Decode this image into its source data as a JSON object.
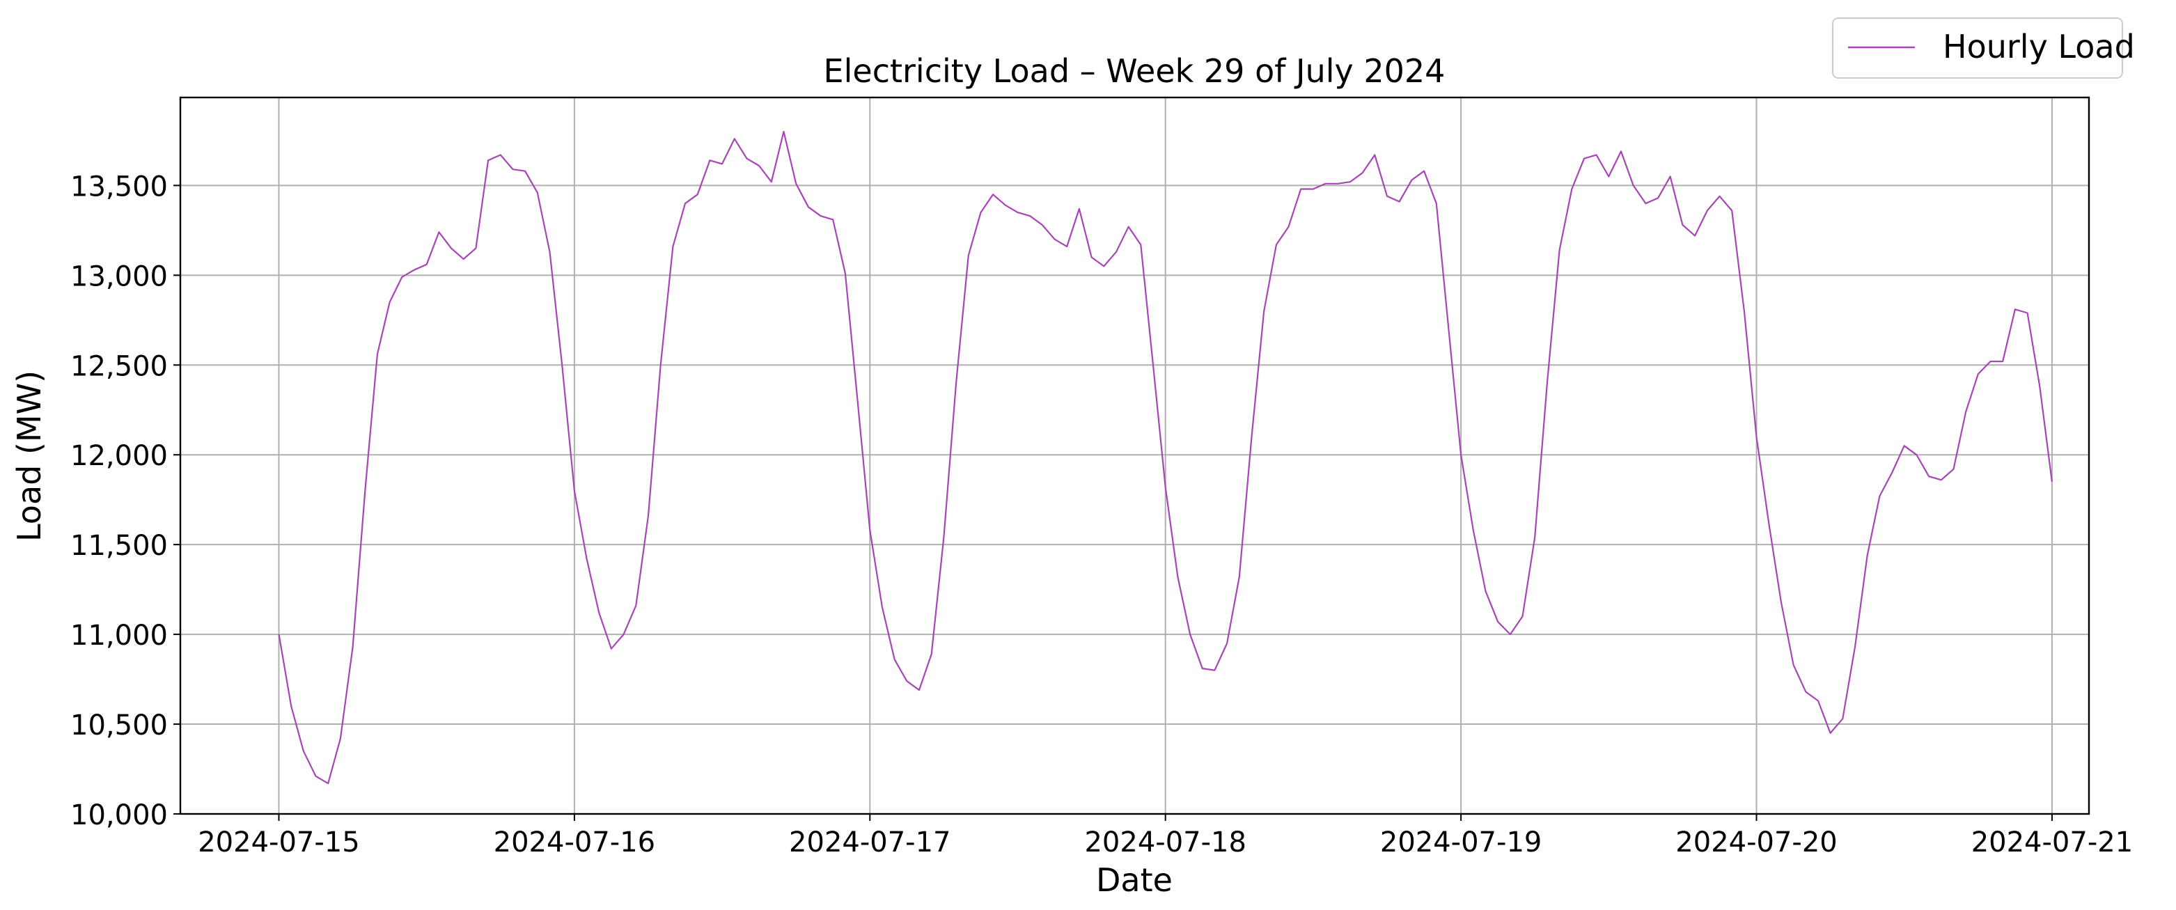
{
  "chart_data": {
    "type": "line",
    "title": "Electricity Load – Week 29 of July 2024",
    "xlabel": "Date",
    "ylabel": "Load (MW)",
    "xlim": [
      "2024-07-14T16:00",
      "2024-07-21T03:00"
    ],
    "ylim": [
      10000,
      13990
    ],
    "xticks": [
      "2024-07-15",
      "2024-07-16",
      "2024-07-17",
      "2024-07-18",
      "2024-07-19",
      "2024-07-20",
      "2024-07-21"
    ],
    "yticks": [
      10000,
      10500,
      11000,
      11500,
      12000,
      12500,
      13000,
      13500
    ],
    "ytick_labels": [
      "10,000",
      "10,500",
      "11,000",
      "11,500",
      "12,000",
      "12,500",
      "13,000",
      "13,500"
    ],
    "grid": true,
    "legend_position": "above-right",
    "x_start": "2024-07-15T00:00",
    "x_step": "1 hour",
    "series": [
      {
        "name": "Hourly Load",
        "color": "#a845b6",
        "values": [
          11000,
          10600,
          10350,
          10210,
          10170,
          10420,
          10930,
          11800,
          12560,
          12850,
          12990,
          13030,
          13060,
          13240,
          13150,
          13090,
          13150,
          13640,
          13670,
          13590,
          13580,
          13460,
          13130,
          12500,
          11800,
          11420,
          11120,
          10920,
          11000,
          11160,
          11660,
          12500,
          13160,
          13400,
          13450,
          13640,
          13620,
          13760,
          13650,
          13610,
          13520,
          13800,
          13510,
          13380,
          13330,
          13310,
          13010,
          12300,
          11580,
          11150,
          10860,
          10740,
          10690,
          10890,
          11540,
          12400,
          13110,
          13350,
          13450,
          13390,
          13350,
          13330,
          13280,
          13200,
          13160,
          13370,
          13100,
          13050,
          13130,
          13270,
          13170,
          12500,
          11820,
          11320,
          11000,
          10810,
          10800,
          10950,
          11320,
          12100,
          12800,
          13170,
          13270,
          13480,
          13480,
          13510,
          13510,
          13520,
          13570,
          13670,
          13440,
          13410,
          13530,
          13580,
          13400,
          12700,
          12000,
          11580,
          11240,
          11070,
          11000,
          11100,
          11540,
          12400,
          13140,
          13480,
          13650,
          13670,
          13550,
          13690,
          13500,
          13400,
          13430,
          13550,
          13280,
          13220,
          13360,
          13440,
          13360,
          12800,
          12100,
          11620,
          11180,
          10830,
          10680,
          10630,
          10450,
          10530,
          10930,
          11440,
          11770,
          11900,
          12050,
          12000,
          11880,
          11860,
          11920,
          12240,
          12450,
          12520,
          12520,
          12810,
          12790,
          12380,
          11850
        ]
      }
    ]
  }
}
